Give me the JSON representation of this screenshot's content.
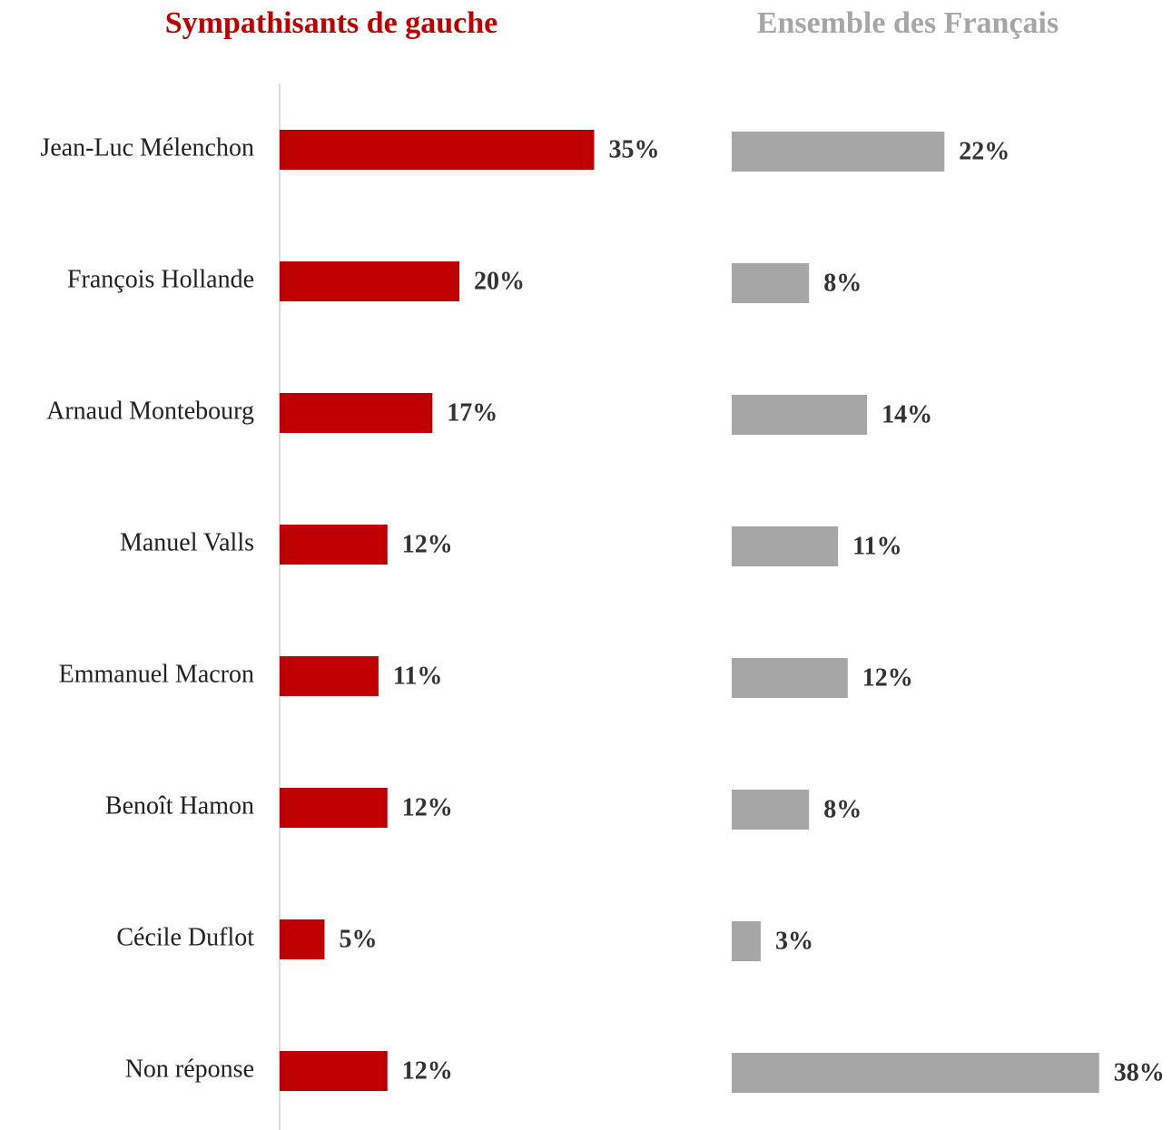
{
  "chart_data": [
    {
      "type": "barh",
      "title": "Sympathisants de gauche",
      "title_color": "#c00000",
      "color": "#c00000",
      "categories": [
        "Jean-Luc Mélenchon",
        "François Hollande",
        "Arnaud Montebourg",
        "Manuel Valls",
        "Emmanuel Macron",
        "Benoît Hamon",
        "Cécile Duflot",
        "Non réponse"
      ],
      "values": [
        35,
        20,
        17,
        12,
        11,
        12,
        5,
        12
      ],
      "value_labels": [
        "35%",
        "20%",
        "17%",
        "12%",
        "11%",
        "12%",
        "5%",
        "12%"
      ],
      "xlim": [
        0,
        40
      ]
    },
    {
      "type": "barh",
      "title": "Ensemble des Français",
      "title_color": "#a6a6a6",
      "color": "#a6a6a6",
      "values": [
        22,
        8,
        14,
        11,
        12,
        8,
        3,
        38
      ],
      "value_labels": [
        "22%",
        "8%",
        "14%",
        "11%",
        "12%",
        "8%",
        "3%",
        "38%"
      ],
      "xlim": [
        0,
        40
      ]
    }
  ]
}
